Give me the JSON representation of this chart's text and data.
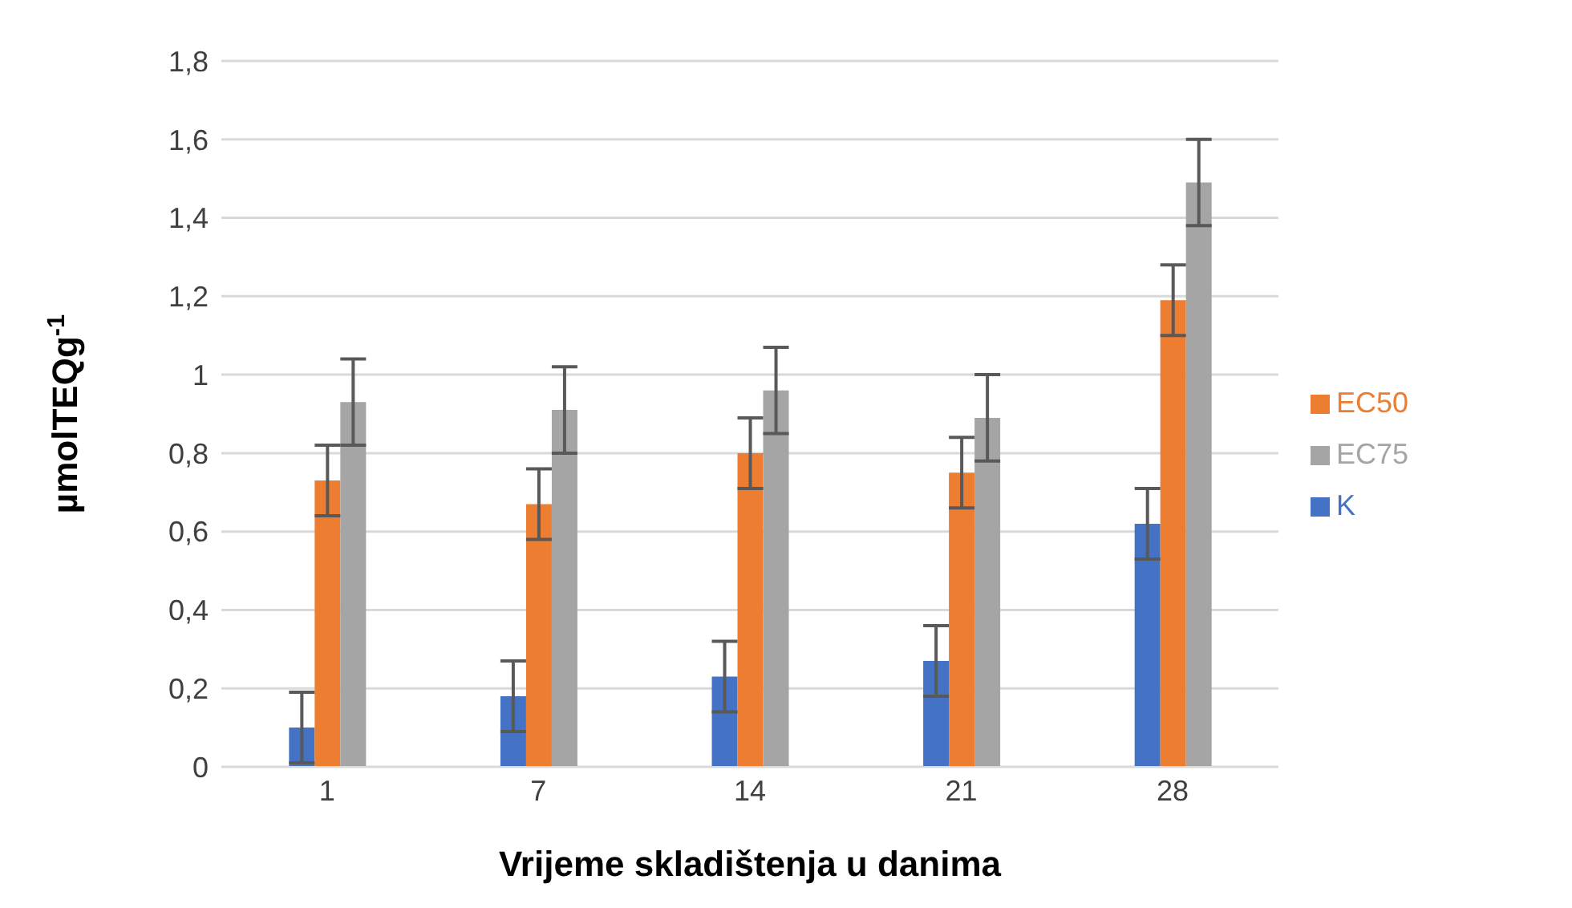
{
  "chart_data": {
    "type": "bar",
    "xlabel": "Vrijeme skladištenja u danima",
    "ylabel": "µmolTEQg$^{-1}$",
    "categories": [
      "1",
      "7",
      "14",
      "21",
      "28"
    ],
    "series": [
      {
        "name": "K",
        "color": "#4472c4",
        "values": [
          0.1,
          0.18,
          0.23,
          0.27,
          0.62
        ],
        "errors": [
          0.09,
          0.09,
          0.09,
          0.09,
          0.09
        ]
      },
      {
        "name": "EC50",
        "color": "#ed7d31",
        "values": [
          0.73,
          0.67,
          0.8,
          0.75,
          1.19
        ],
        "errors": [
          0.09,
          0.09,
          0.09,
          0.09,
          0.09
        ]
      },
      {
        "name": "EC75",
        "color": "#a5a5a5",
        "values": [
          0.93,
          0.91,
          0.96,
          0.89,
          1.49
        ],
        "errors": [
          0.11,
          0.11,
          0.11,
          0.11,
          0.11
        ]
      }
    ],
    "ylim": [
      0,
      1.8
    ],
    "yticks": [
      {
        "value": 0,
        "label": "0"
      },
      {
        "value": 0.2,
        "label": "0,2"
      },
      {
        "value": 0.4,
        "label": "0,4"
      },
      {
        "value": 0.6,
        "label": "0,6"
      },
      {
        "value": 0.8,
        "label": "0,8"
      },
      {
        "value": 1,
        "label": "1"
      },
      {
        "value": 1.2,
        "label": "1,2"
      },
      {
        "value": 1.4,
        "label": "1,4"
      },
      {
        "value": 1.6,
        "label": "1,6"
      },
      {
        "value": 1.8,
        "label": "1,8"
      }
    ],
    "grid": "y",
    "legend": "right"
  }
}
